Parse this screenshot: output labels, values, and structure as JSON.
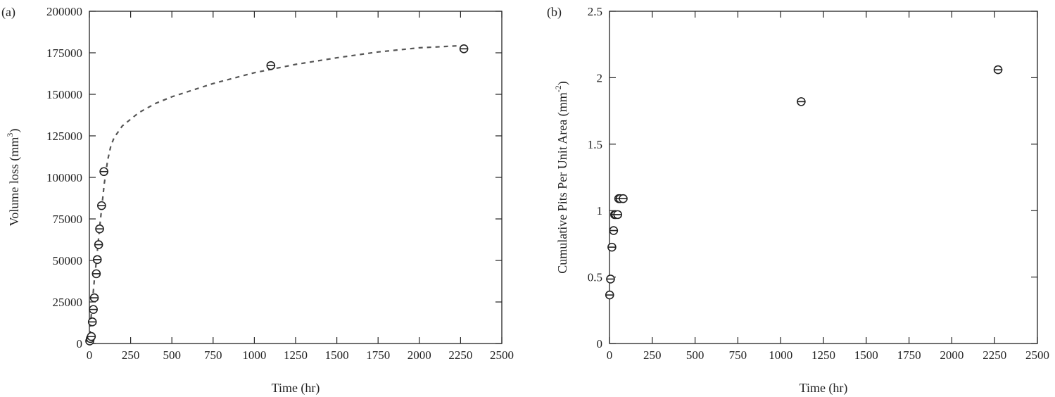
{
  "chart_data": [
    {
      "panel_label": "(a)",
      "type": "scatter",
      "xlabel": "Time (hr)",
      "ylabel": "Volume loss (mm",
      "ylabel_sup": "3",
      "ylabel_suffix": ")",
      "xlim": [
        0,
        2500
      ],
      "ylim": [
        0,
        200000
      ],
      "xticks": [
        0,
        250,
        500,
        750,
        1000,
        1250,
        1500,
        1750,
        2000,
        2250,
        2500
      ],
      "yticks": [
        0,
        25000,
        50000,
        75000,
        100000,
        125000,
        150000,
        175000,
        200000
      ],
      "grid": false,
      "series": [
        {
          "marker": "circle-with-bar",
          "points": [
            [
              2,
              1500
            ],
            [
              6,
              3000
            ],
            [
              12,
              4200
            ],
            [
              18,
              13000
            ],
            [
              24,
              20500
            ],
            [
              30,
              27500
            ],
            [
              42,
              42000
            ],
            [
              48,
              50500
            ],
            [
              56,
              59500
            ],
            [
              62,
              69000
            ],
            [
              74,
              83000
            ],
            [
              88,
              103500
            ],
            [
              1100,
              167300
            ],
            [
              2270,
              177400
            ]
          ]
        },
        {
          "style": "dashed-fit-curve",
          "points": [
            [
              0,
              0
            ],
            [
              10,
              15000
            ],
            [
              20,
              27000
            ],
            [
              30,
              38000
            ],
            [
              45,
              52000
            ],
            [
              60,
              68000
            ],
            [
              75,
              82000
            ],
            [
              90,
              96000
            ],
            [
              110,
              110000
            ],
            [
              130,
              119000
            ],
            [
              150,
              124000
            ],
            [
              200,
              131000
            ],
            [
              300,
              139000
            ],
            [
              400,
              144500
            ],
            [
              500,
              148500
            ],
            [
              750,
              156500
            ],
            [
              1000,
              163000
            ],
            [
              1250,
              168000
            ],
            [
              1500,
              172000
            ],
            [
              1750,
              175500
            ],
            [
              2000,
              178000
            ],
            [
              2250,
              179300
            ]
          ]
        }
      ]
    },
    {
      "panel_label": "(b)",
      "type": "scatter",
      "xlabel": "Time (hr)",
      "ylabel": "Cumulative Pits Per Unit Area (mm",
      "ylabel_sup": "-2",
      "ylabel_suffix": ")",
      "xlim": [
        0,
        2500
      ],
      "ylim": [
        0,
        2.5
      ],
      "xticks": [
        0,
        250,
        500,
        750,
        1000,
        1250,
        1500,
        1750,
        2000,
        2250,
        2500
      ],
      "yticks": [
        0,
        0.5,
        1,
        1.5,
        2,
        2.5
      ],
      "grid": false,
      "series": [
        {
          "marker": "circle-with-bar",
          "points": [
            [
              1,
              0.365
            ],
            [
              6,
              0.485
            ],
            [
              14,
              0.725
            ],
            [
              24,
              0.85
            ],
            [
              30,
              0.97
            ],
            [
              36,
              0.97
            ],
            [
              48,
              0.97
            ],
            [
              54,
              1.09
            ],
            [
              62,
              1.09
            ],
            [
              80,
              1.09
            ],
            [
              1120,
              1.82
            ],
            [
              2270,
              2.06
            ]
          ]
        }
      ]
    }
  ]
}
